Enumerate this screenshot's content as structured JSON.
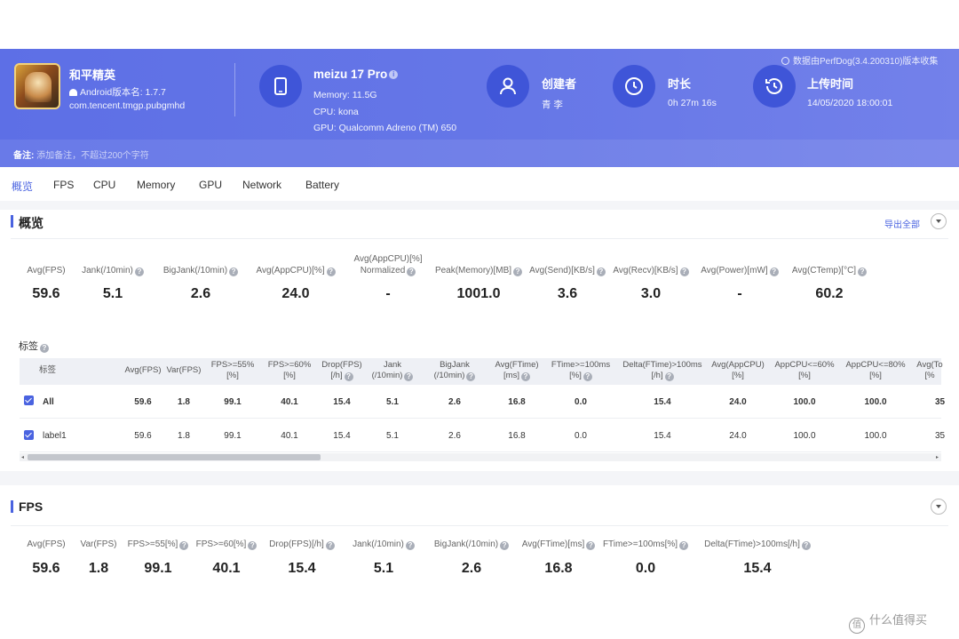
{
  "header": {
    "app_name": "和平精英",
    "android_version": "Android版本名: 1.7.7",
    "package": "com.tencent.tmgp.pubgmhd",
    "device": "meizu 17 Pro",
    "memory": "Memory: 11.5G",
    "cpu": "CPU: kona",
    "gpu": "GPU: Qualcomm Adreno (TM) 650",
    "creator_label": "创建者",
    "creator_value": "青 李",
    "duration_label": "时长",
    "duration_value": "0h 27m 16s",
    "upload_label": "上传时间",
    "upload_value": "14/05/2020 18:00:01",
    "source_note": "数据由PerfDog(3.4.200310)版本收集",
    "remark_label": "备注:",
    "remark_placeholder": "添加备注，不超过200个字符"
  },
  "tabs": [
    "概览",
    "FPS",
    "CPU",
    "Memory",
    "GPU",
    "Network",
    "Battery"
  ],
  "overview": {
    "title": "概览",
    "export_label": "导出全部",
    "metrics": [
      {
        "label": "Avg(FPS)",
        "value": "59.6"
      },
      {
        "label": "Jank(/10min)",
        "value": "5.1"
      },
      {
        "label": "BigJank(/10min)",
        "value": "2.6"
      },
      {
        "label": "Avg(AppCPU)[%]",
        "value": "24.0"
      },
      {
        "label": "Avg(AppCPU)[%]",
        "label2": "Normalized",
        "value": "-"
      },
      {
        "label": "Peak(Memory)[MB]",
        "value": "1001.0"
      },
      {
        "label": "Avg(Send)[KB/s]",
        "value": "3.6"
      },
      {
        "label": "Avg(Recv)[KB/s]",
        "value": "3.0"
      },
      {
        "label": "Avg(Power)[mW]",
        "value": "-"
      },
      {
        "label": "Avg(CTemp)[°C]",
        "value": "60.2"
      }
    ]
  },
  "labels_table": {
    "title": "标签",
    "columns": [
      {
        "l1": "标签",
        "l2": ""
      },
      {
        "l1": "Avg(FPS)",
        "l2": ""
      },
      {
        "l1": "Var(FPS)",
        "l2": ""
      },
      {
        "l1": "FPS>=55%",
        "l2": "[%]"
      },
      {
        "l1": "FPS>=60%",
        "l2": "[%]"
      },
      {
        "l1": "Drop(FPS)",
        "l2": "[/h]"
      },
      {
        "l1": "Jank",
        "l2": "(/10min)"
      },
      {
        "l1": "BigJank",
        "l2": "(/10min)"
      },
      {
        "l1": "Avg(FTime)",
        "l2": "[ms]"
      },
      {
        "l1": "FTime>=100ms",
        "l2": "[%]"
      },
      {
        "l1": "Delta(FTime)>100ms",
        "l2": "[/h]"
      },
      {
        "l1": "Avg(AppCPU)",
        "l2": "[%]"
      },
      {
        "l1": "AppCPU<=60%",
        "l2": "[%]"
      },
      {
        "l1": "AppCPU<=80%",
        "l2": "[%]"
      },
      {
        "l1": "Avg(To",
        "l2": "[%"
      }
    ],
    "rows": [
      {
        "name": "All",
        "values": [
          "59.6",
          "1.8",
          "99.1",
          "40.1",
          "15.4",
          "5.1",
          "2.6",
          "16.8",
          "0.0",
          "15.4",
          "24.0",
          "100.0",
          "100.0",
          "35"
        ]
      },
      {
        "name": "label1",
        "values": [
          "59.6",
          "1.8",
          "99.1",
          "40.1",
          "15.4",
          "5.1",
          "2.6",
          "16.8",
          "0.0",
          "15.4",
          "24.0",
          "100.0",
          "100.0",
          "35"
        ]
      }
    ]
  },
  "fps_section": {
    "title": "FPS",
    "metrics": [
      {
        "label": "Avg(FPS)",
        "value": "59.6"
      },
      {
        "label": "Var(FPS)",
        "value": "1.8"
      },
      {
        "label": "FPS>=55[%]",
        "value": "99.1"
      },
      {
        "label": "FPS>=60[%]",
        "value": "40.1"
      },
      {
        "label": "Drop(FPS)[/h]",
        "value": "15.4"
      },
      {
        "label": "Jank(/10min)",
        "value": "5.1"
      },
      {
        "label": "BigJank(/10min)",
        "value": "2.6"
      },
      {
        "label": "Avg(FTime)[ms]",
        "value": "16.8"
      },
      {
        "label": "FTime>=100ms[%]",
        "value": "0.0"
      },
      {
        "label": "Delta(FTime)>100ms[/h]",
        "value": "15.4"
      }
    ]
  },
  "watermark": "什么值得买"
}
